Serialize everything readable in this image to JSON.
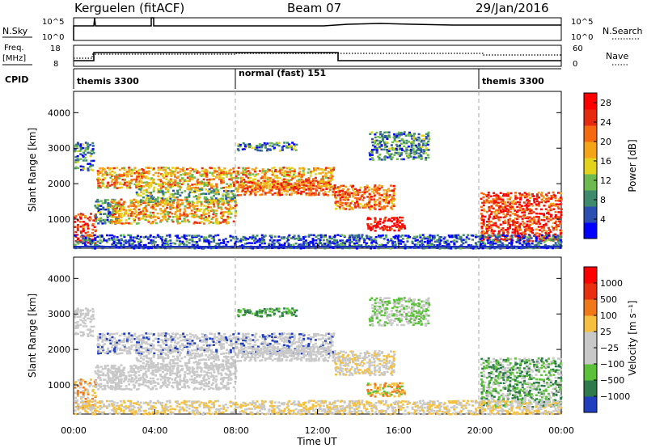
{
  "header": {
    "station": "Kerguelen (fitACF)",
    "beam": "Beam 07",
    "date": "29/Jan/2016"
  },
  "noise_panel": {
    "left_label": "N.Sky",
    "right_label": "N.Search",
    "left_ticks": [
      "10^5",
      "10^0"
    ],
    "right_ticks": [
      "10^5",
      "10^0"
    ]
  },
  "freq_panel": {
    "left_label_1": "Freq.",
    "left_label_2": "[MHz]",
    "right_label": "Nave",
    "left_ticks": [
      "18",
      "8"
    ],
    "right_ticks": [
      "60",
      "0"
    ]
  },
  "cpid": {
    "label": "CPID",
    "segments": [
      {
        "name": "themis 3300",
        "start_hour": 0,
        "end_hour": 8
      },
      {
        "name": "normal (fast) 151",
        "start_hour": 8,
        "end_hour": 20
      },
      {
        "name": "themis 3300",
        "start_hour": 20,
        "end_hour": 24
      }
    ]
  },
  "chart_data": [
    {
      "type": "heatmap",
      "title": "",
      "xlabel": "Time UT",
      "ylabel": "Slant Range [km]",
      "x_range_hours": [
        0,
        24
      ],
      "x_tick_labels": [
        "00:00",
        "04:00",
        "08:00",
        "12:00",
        "16:00",
        "20:00",
        "00:00"
      ],
      "ylim": [
        180,
        4600
      ],
      "y_tick_labels": [
        "1000",
        "2000",
        "3000",
        "4000"
      ],
      "y_ticks": [
        1000,
        2000,
        3000,
        4000
      ],
      "colorbar": {
        "label": "Power [dB]",
        "tick_labels": [
          "4",
          "8",
          "12",
          "16",
          "20",
          "24",
          "28"
        ],
        "ticks": [
          4,
          8,
          12,
          16,
          20,
          24,
          28
        ],
        "range": [
          0,
          30
        ],
        "colors": [
          "#0000ff",
          "#2b4fb0",
          "#3f8a6c",
          "#6dbb50",
          "#e2d21a",
          "#f5a41a",
          "#f56a10",
          "#e62a10",
          "#ff0000"
        ]
      }
    },
    {
      "type": "heatmap",
      "title": "",
      "xlabel": "Time UT",
      "ylabel": "Slant Range [km]",
      "x_range_hours": [
        0,
        24
      ],
      "x_tick_labels": [
        "00:00",
        "04:00",
        "08:00",
        "12:00",
        "16:00",
        "20:00",
        "00:00"
      ],
      "ylim": [
        180,
        4600
      ],
      "y_tick_labels": [
        "1000",
        "2000",
        "3000",
        "4000"
      ],
      "y_ticks": [
        1000,
        2000,
        3000,
        4000
      ],
      "colorbar": {
        "label": "Velocity [m s⁻¹]",
        "tick_labels": [
          "1000",
          "500",
          "100",
          "25",
          "−25",
          "−100",
          "−500",
          "−1000"
        ],
        "colors": [
          "#1f3fbf",
          "#2e7a4a",
          "#5bc03a",
          "#c8c8c8",
          "#c8c8c8",
          "#f5c040",
          "#f07818",
          "#e83010",
          "#ff0000"
        ]
      }
    }
  ]
}
